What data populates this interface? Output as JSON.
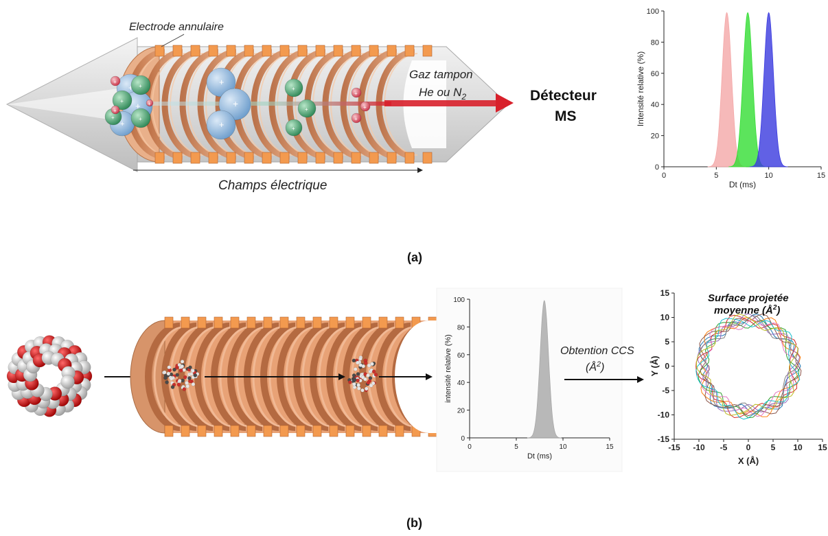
{
  "panel_a": {
    "label": "(a)",
    "electrode_label": "Electrode annulaire",
    "gas_line1": "Gaz tampon",
    "gas_line2": "He ou N",
    "gas_sub": "2",
    "detector_line1": "Détecteur",
    "detector_line2": "MS",
    "field_label": "Champs électrique"
  },
  "panel_b": {
    "label": "(b)",
    "ccs_line1": "Obtention CCS",
    "ccs_line2": "(Å",
    "ccs_sup": "2",
    "ccs_close": ")",
    "surface_line1": "Surface projetée",
    "surface_line2": "moyenne (Å",
    "surface_sup": "2",
    "surface_close": ")"
  },
  "colors": {
    "electrode": "#f39a4f",
    "electrode_dark": "#c9784a",
    "ion_blue": "#8fb7dd",
    "ion_green": "#3f9e69",
    "ion_red": "#d9485a",
    "beam_red": "#d8202b"
  },
  "chart_data": [
    {
      "type": "area",
      "xlabel": "Dt (ms)",
      "ylabel": "Intensité relative (%)",
      "xlim": [
        0,
        15
      ],
      "ylim": [
        0,
        100
      ],
      "xticks": [
        0,
        5,
        10,
        15
      ],
      "yticks": [
        0,
        20,
        40,
        60,
        80,
        100
      ],
      "grid": false,
      "series": [
        {
          "center": 6,
          "width": 0.45,
          "peak": 99,
          "color": "#f4a7a7"
        },
        {
          "center": 8,
          "width": 0.45,
          "peak": 99,
          "color": "#33dd33"
        },
        {
          "center": 10,
          "width": 0.45,
          "peak": 99,
          "color": "#3a3adf"
        }
      ]
    },
    {
      "type": "area",
      "xlabel": "Dt (ms)",
      "ylabel": "intensité relative (%)",
      "xlim": [
        0,
        15
      ],
      "ylim": [
        0,
        100
      ],
      "xticks": [
        0,
        5,
        10,
        15
      ],
      "yticks": [
        0,
        20,
        40,
        60,
        80,
        100
      ],
      "grid": false,
      "series": [
        {
          "center": 8,
          "width": 0.45,
          "peak": 99,
          "color": "#a8a8a8"
        }
      ]
    },
    {
      "type": "line",
      "xlabel": "X (Å)",
      "ylabel": "Y (Å)",
      "xlim": [
        -15,
        15
      ],
      "ylim": [
        -15,
        15
      ],
      "xticks": [
        -15,
        -10,
        -5,
        0,
        5,
        10,
        15
      ],
      "yticks": [
        -15,
        -10,
        -5,
        0,
        5,
        10,
        15
      ],
      "grid": false,
      "series": [
        {
          "color": "#1f77b4",
          "radius": 9.4
        },
        {
          "color": "#ff7f0e",
          "radius": 9.6
        },
        {
          "color": "#2ca02c",
          "radius": 9.2
        },
        {
          "color": "#d62728",
          "radius": 9.5
        },
        {
          "color": "#9467bd",
          "radius": 9.3
        },
        {
          "color": "#8c564b",
          "radius": 9.7
        },
        {
          "color": "#e377c2",
          "radius": 9.1
        },
        {
          "color": "#17becf",
          "radius": 9.5
        },
        {
          "color": "#bcbd22",
          "radius": 9.4
        },
        {
          "color": "#7f7f7f",
          "radius": 9.0
        }
      ]
    }
  ]
}
